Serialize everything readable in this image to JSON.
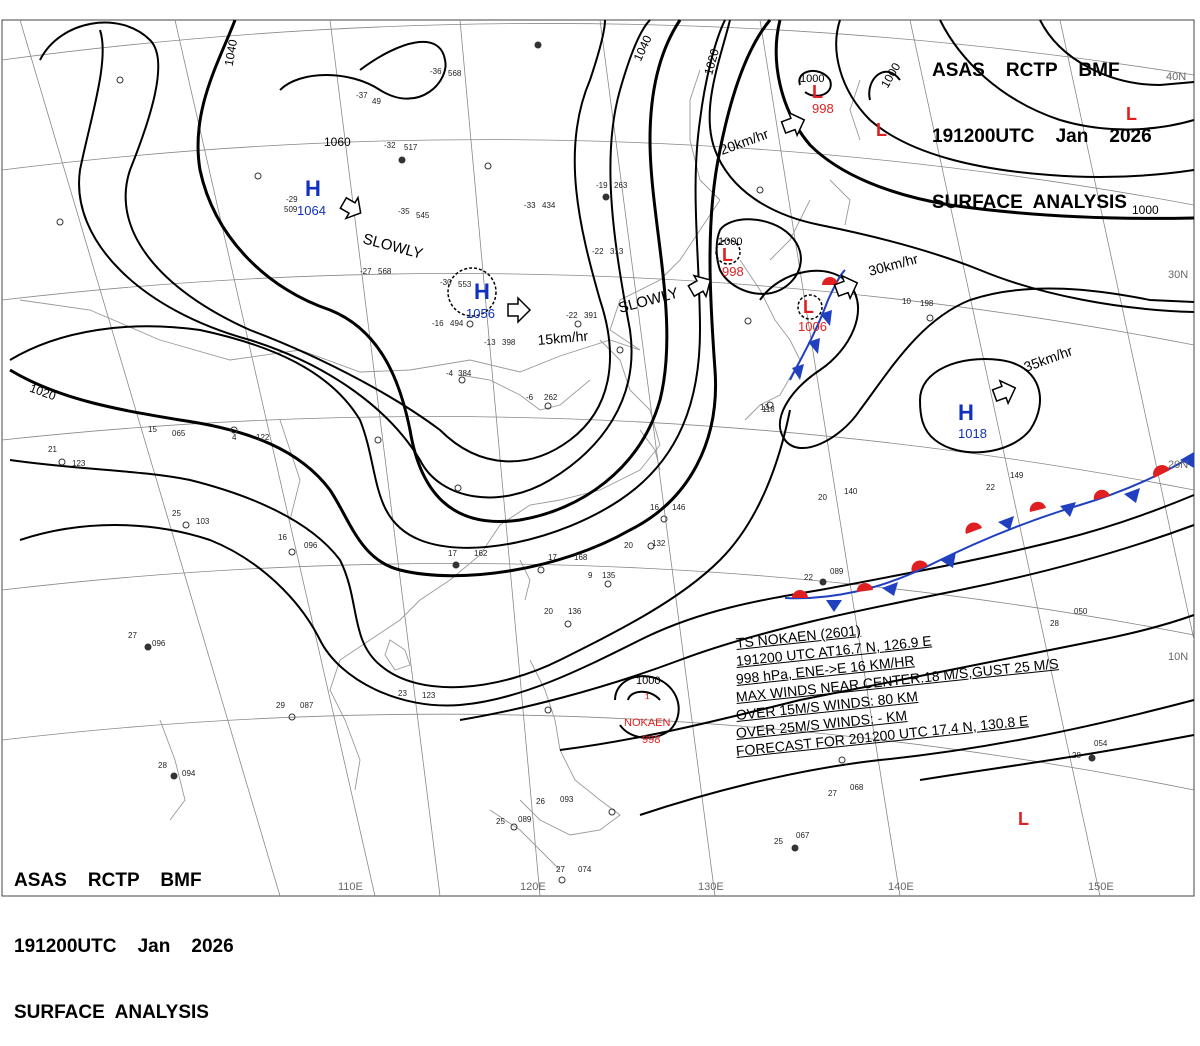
{
  "header": {
    "line1": "ASAS    RCTP    BMF",
    "line2": "191200UTC    Jan    2026",
    "line3": "SURFACE  ANALYSIS"
  },
  "longitudes": [
    "110E",
    "120E",
    "130E",
    "140E",
    "150E"
  ],
  "latitudes": [
    "40N",
    "30N",
    "20N",
    "10N"
  ],
  "isobar_labels": [
    "1040",
    "1060",
    "1040",
    "1020",
    "1000",
    "1000",
    "1020"
  ],
  "systems": {
    "high_mongolia": {
      "letter": "H",
      "pressure": "1064",
      "motion": "SLOWLY"
    },
    "high_china": {
      "letter": "H",
      "pressure": "1056",
      "motion": "15km/hr"
    },
    "high_pacific": {
      "letter": "H",
      "pressure": "1018",
      "motion": "35km/hr"
    },
    "low_kuril": {
      "letter": "L",
      "pressure": "998",
      "isobar": "1000",
      "motion": "20km/hr"
    },
    "low_japan_sea": {
      "letter": "L",
      "pressure": "998",
      "isobar": "1000",
      "motion": "SLOWLY"
    },
    "low_japan": {
      "letter": "L",
      "pressure": "1006",
      "motion": "30km/hr"
    },
    "low_ne1": {
      "letter": "L"
    },
    "low_ne2": {
      "letter": "L"
    },
    "low_se": {
      "letter": "L"
    },
    "typhoon": {
      "name": "NOKAEN",
      "pressure": "998",
      "isobar": "1000"
    }
  },
  "ts_info": {
    "line1": "TS  NOKAEN  (2601)",
    "line2": "191200 UTC  AT16.7 N, 126.9 E",
    "line3": "998 hPa, ENE->E  16 KM/HR",
    "line4": "MAX WINDS NEAR CENTER:18 M/S,GUST 25 M/S",
    "line5": "OVER 15M/S WINDS: 80 KM",
    "line6": "OVER 25M/S WINDS: - KM",
    "line7": "FORECAST FOR 201200 UTC 17.4 N, 130.8 E"
  },
  "stations": [
    {
      "t": "-36",
      "p": "568"
    },
    {
      "t": "-37",
      "p": "49"
    },
    {
      "t": "-32",
      "p": "517"
    },
    {
      "t": "-29",
      "p": "509"
    },
    {
      "t": "-35",
      "p": "545"
    },
    {
      "t": "-27",
      "p": "568"
    },
    {
      "t": "-30",
      "p": "553"
    },
    {
      "t": "-16",
      "p": "494"
    },
    {
      "t": "-22",
      "p": "391"
    },
    {
      "t": "-13",
      "p": "398"
    },
    {
      "t": "-22",
      "p": "313"
    },
    {
      "t": "-19",
      "p": "263"
    },
    {
      "t": "-33",
      "p": "434"
    },
    {
      "t": "-4",
      "p": "384"
    },
    {
      "t": "-6",
      "p": "262"
    },
    {
      "t": "4",
      "p": "122"
    },
    {
      "t": "21",
      "p": "123"
    },
    {
      "t": "25",
      "p": "103"
    },
    {
      "t": "16",
      "p": "096"
    },
    {
      "t": "27",
      "p": "096"
    },
    {
      "t": "29",
      "p": "087"
    },
    {
      "t": "23",
      "p": "123"
    },
    {
      "t": "28",
      "p": "094"
    },
    {
      "t": "17",
      "p": "162"
    },
    {
      "t": "17",
      "p": "168"
    },
    {
      "t": "20",
      "p": "132"
    },
    {
      "t": "16",
      "p": "146"
    },
    {
      "t": "20",
      "p": "140"
    },
    {
      "t": "22",
      "p": "149"
    },
    {
      "t": "22",
      "p": "089"
    },
    {
      "t": "28",
      "p": "050"
    },
    {
      "t": "28",
      "p": "054"
    },
    {
      "t": "27",
      "p": "068"
    },
    {
      "t": "25",
      "p": "067"
    },
    {
      "t": "25",
      "p": "089"
    },
    {
      "t": "27",
      "p": "074"
    },
    {
      "t": "26",
      "p": "093"
    },
    {
      "t": "20",
      "p": "136"
    },
    {
      "t": "9",
      "p": "135"
    },
    {
      "t": "10",
      "p": "198"
    },
    {
      "t": "13",
      "p": "118"
    },
    {
      "t": "15",
      "p": "065"
    }
  ]
}
